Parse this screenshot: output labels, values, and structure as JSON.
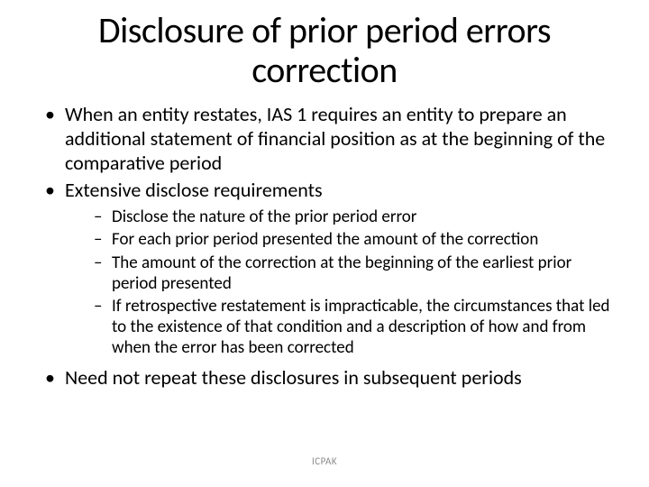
{
  "title": "Disclosure of prior period errors correction",
  "bullets": [
    {
      "text": "When an entity restates, IAS 1 requires an entity to prepare an additional statement of financial position as at the beginning of the comparative period"
    },
    {
      "text": "Extensive disclose requirements",
      "sub": [
        "Disclose the nature of the prior period error",
        "For each prior period presented the amount of the correction",
        "The amount of the correction at the beginning of the earliest prior period presented",
        "If retrospective restatement is impracticable, the circumstances that led to the existence of that condition and a description of how and from when the error has been corrected"
      ]
    },
    {
      "text": "Need not repeat these disclosures in subsequent periods"
    }
  ],
  "footer": "ICPAK",
  "colors": {
    "background": "#ffffff",
    "text": "#000000",
    "footer": "#8a8a8a"
  },
  "fonts": {
    "title_size_pt": 40,
    "body_size_pt": 22,
    "sub_size_pt": 19,
    "footer_size_pt": 11,
    "family": "Calibri"
  }
}
